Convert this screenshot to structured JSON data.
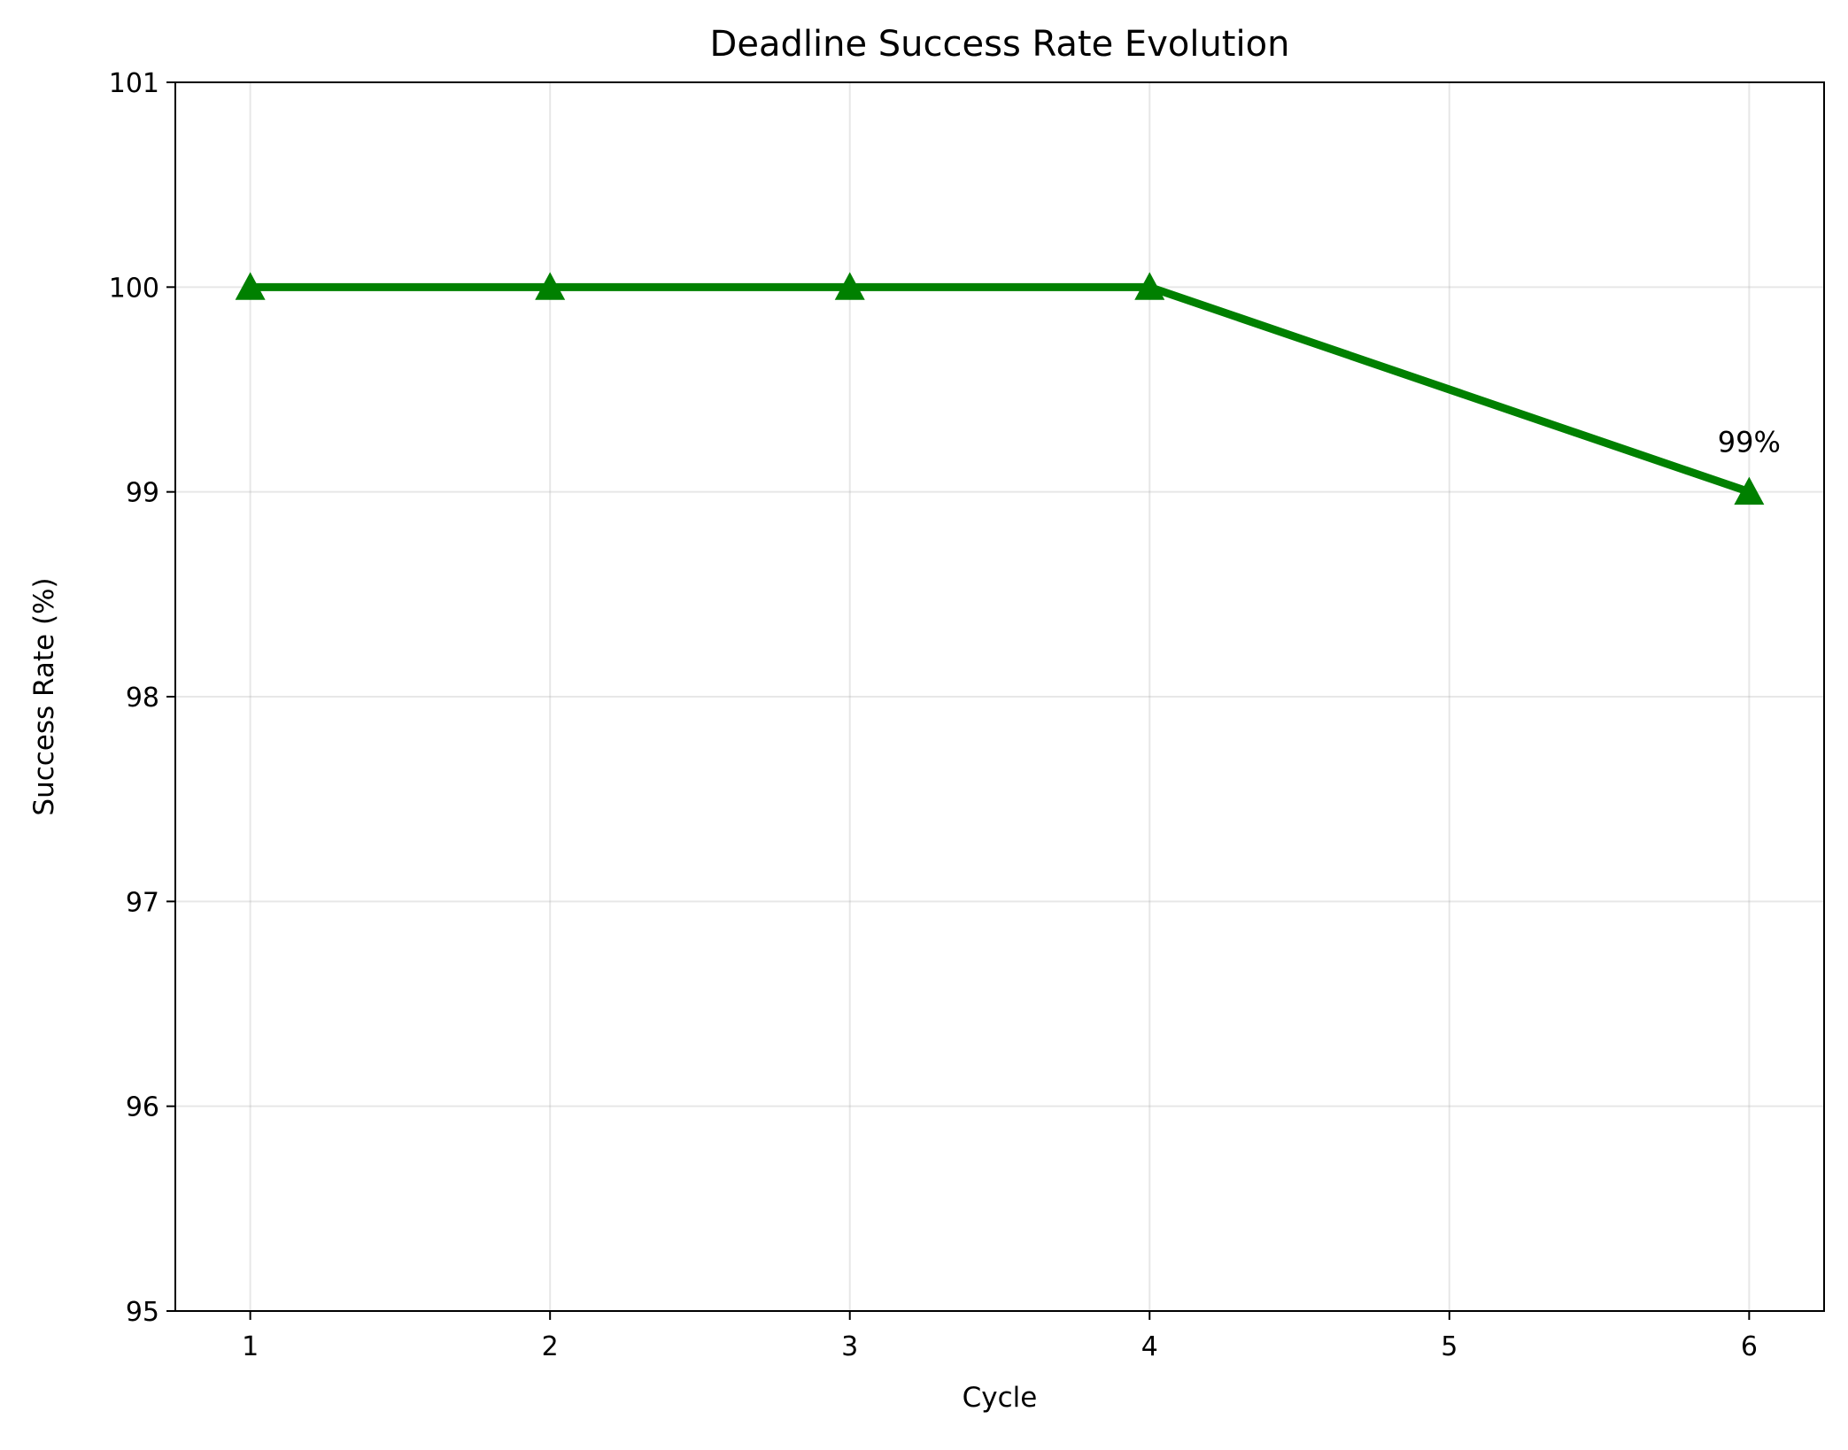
{
  "chart_data": {
    "type": "line",
    "title": "Deadline Success Rate Evolution",
    "xlabel": "Cycle",
    "ylabel": "Success Rate (%)",
    "x": [
      1,
      2,
      3,
      4,
      6
    ],
    "series": [
      {
        "name": "Success Rate",
        "values": [
          100,
          100,
          100,
          100,
          99
        ],
        "color": "#008000",
        "marker": "triangle-up"
      }
    ],
    "xlim": [
      0.75,
      6.25
    ],
    "ylim": [
      95,
      101
    ],
    "xticks": [
      "1",
      "2",
      "3",
      "4",
      "5",
      "6"
    ],
    "yticks": [
      "95",
      "96",
      "97",
      "98",
      "99",
      "100",
      "101"
    ],
    "grid": true,
    "annotations": [
      {
        "x": 6,
        "y": 99,
        "text": "99%"
      }
    ]
  }
}
